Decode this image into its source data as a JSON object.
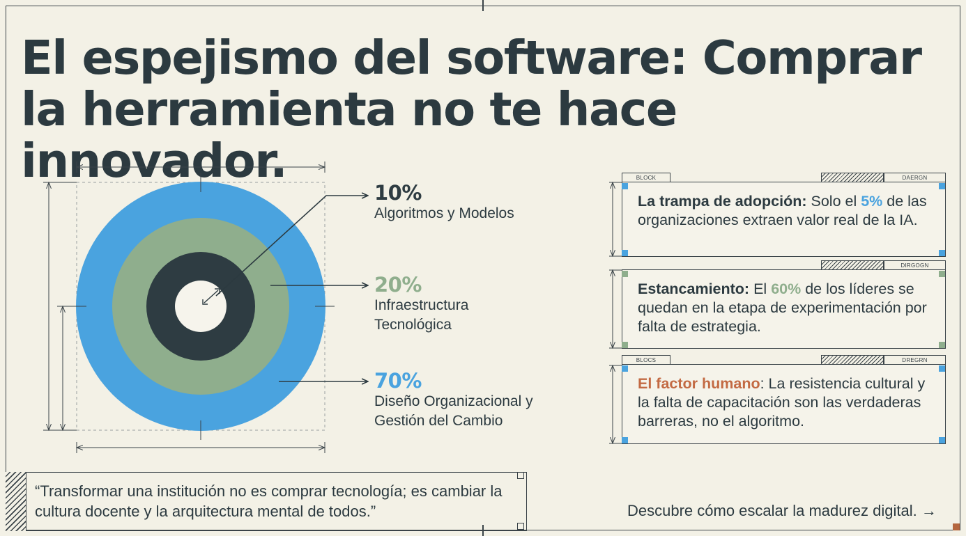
{
  "title": "El espejismo del software: Comprar la herramienta no te hace innovador.",
  "colors": {
    "blue": "#4aa3df",
    "green": "#8fae8d",
    "dark": "#2e3c42",
    "accent_orange": "#c36a43",
    "text": "#2c3a40"
  },
  "chart_data": {
    "type": "concentric-rings",
    "series": [
      {
        "value": "10%",
        "label": "Algoritmos y Modelos",
        "color": "#2e3c42",
        "fraction": 0.1
      },
      {
        "value": "20%",
        "label": "Infraestructura Tecnológica",
        "color": "#8fae8d",
        "fraction": 0.2
      },
      {
        "value": "70%",
        "label": "Diseño Organizacional y Gestión del Cambio",
        "color": "#4aa3df",
        "fraction": 0.7
      }
    ]
  },
  "cards": [
    {
      "tab_left": "BLOCK",
      "tab_right": "DAERGN",
      "title": "La trampa de adopción:",
      "pre": " Solo el ",
      "highlight": "5%",
      "highlight_color": "#4aa3df",
      "post": " de las organizaciones extraen valor real de la IA."
    },
    {
      "tab_right": "DIRGOGN",
      "title": "Estancamiento:",
      "pre": " El ",
      "highlight": "60%",
      "highlight_color": "#8fae8d",
      "post": " de los líderes se quedan en la etapa de experimentación por falta de estrategia."
    },
    {
      "tab_left": "BLOCS",
      "tab_right": "DREGRN",
      "title": "El factor humano",
      "title_color": "#c36a43",
      "post": ": La resistencia cultural y la falta de capacitación son las verdaderas barreras, no el algoritmo."
    }
  ],
  "quote": "“Transformar una institución no es comprar tecnología; es cambiar la cultura docente y la arquitectura mental de todos.”",
  "cta": "Descubre cómo escalar la madurez digital. →"
}
